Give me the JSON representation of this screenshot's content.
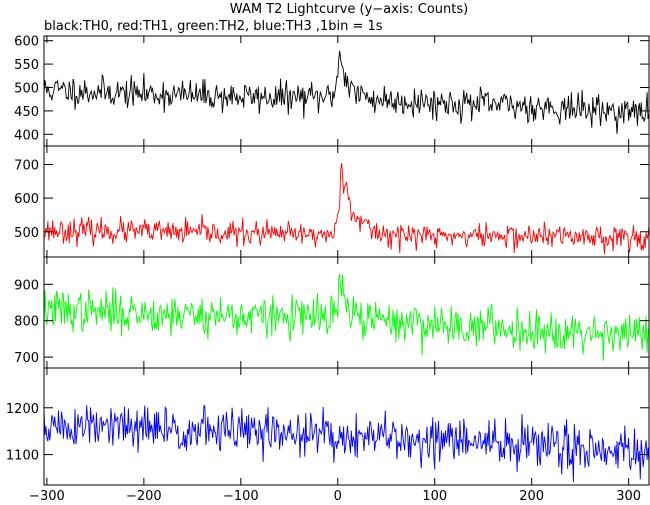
{
  "chart_data": {
    "type": "line",
    "title": "WAM T2 Lightcurve (y−axis: Counts)",
    "subtitle": "black:TH0, red:TH1, green:TH2, blue:TH3 ,1bin = 1s",
    "x_range": [
      -303,
      321
    ],
    "x_ticks": [
      -300,
      -200,
      -100,
      0,
      100,
      200,
      300
    ],
    "x_tick_labels": [
      "−300",
      "−200",
      "−100",
      "0",
      "100",
      "200",
      "300"
    ],
    "grid": false,
    "panels": [
      {
        "series_name": "TH0",
        "color": "#000000",
        "ylim": [
          375,
          610
        ],
        "yticks": [
          400,
          450,
          500,
          550,
          600
        ],
        "baseline": [
          [
            -300,
            495
          ],
          [
            -200,
            487
          ],
          [
            -100,
            480
          ],
          [
            -10,
            478
          ],
          [
            0,
            478
          ],
          [
            100,
            468
          ],
          [
            200,
            460
          ],
          [
            320,
            445
          ]
        ],
        "noise": 16,
        "burst": {
          "peak_x": 2,
          "amplitude": 100,
          "decay": 8,
          "rise": 3
        },
        "seed": 11
      },
      {
        "series_name": "TH1",
        "color": "#ff0000",
        "ylim": [
          425,
          755
        ],
        "yticks": [
          500,
          600,
          700
        ],
        "baseline": [
          [
            -300,
            505
          ],
          [
            -100,
            495
          ],
          [
            0,
            490
          ],
          [
            320,
            485
          ]
        ],
        "noise": 18,
        "burst": {
          "peak_x": 3,
          "amplitude": 220,
          "decay": 12,
          "rise": 2
        },
        "seed": 23
      },
      {
        "series_name": "TH2",
        "color": "#00ff00",
        "ylim": [
          670,
          975
        ],
        "yticks": [
          700,
          800,
          900
        ],
        "baseline": [
          [
            -300,
            830
          ],
          [
            -100,
            812
          ],
          [
            0,
            808
          ],
          [
            100,
            790
          ],
          [
            200,
            775
          ],
          [
            320,
            765
          ]
        ],
        "noise": 28,
        "burst": {
          "peak_x": 2,
          "amplitude": 110,
          "decay": 6,
          "rise": 2
        },
        "seed": 37
      },
      {
        "series_name": "TH3",
        "color": "#0000ff",
        "ylim": [
          1035,
          1285
        ],
        "yticks": [
          1100,
          1200
        ],
        "baseline": [
          [
            -300,
            1160
          ],
          [
            -100,
            1150
          ],
          [
            0,
            1140
          ],
          [
            200,
            1120
          ],
          [
            320,
            1110
          ]
        ],
        "noise": 25,
        "burst": {
          "peak_x": 0,
          "amplitude": 0,
          "decay": 5,
          "rise": 2
        },
        "seed": 51
      }
    ]
  }
}
